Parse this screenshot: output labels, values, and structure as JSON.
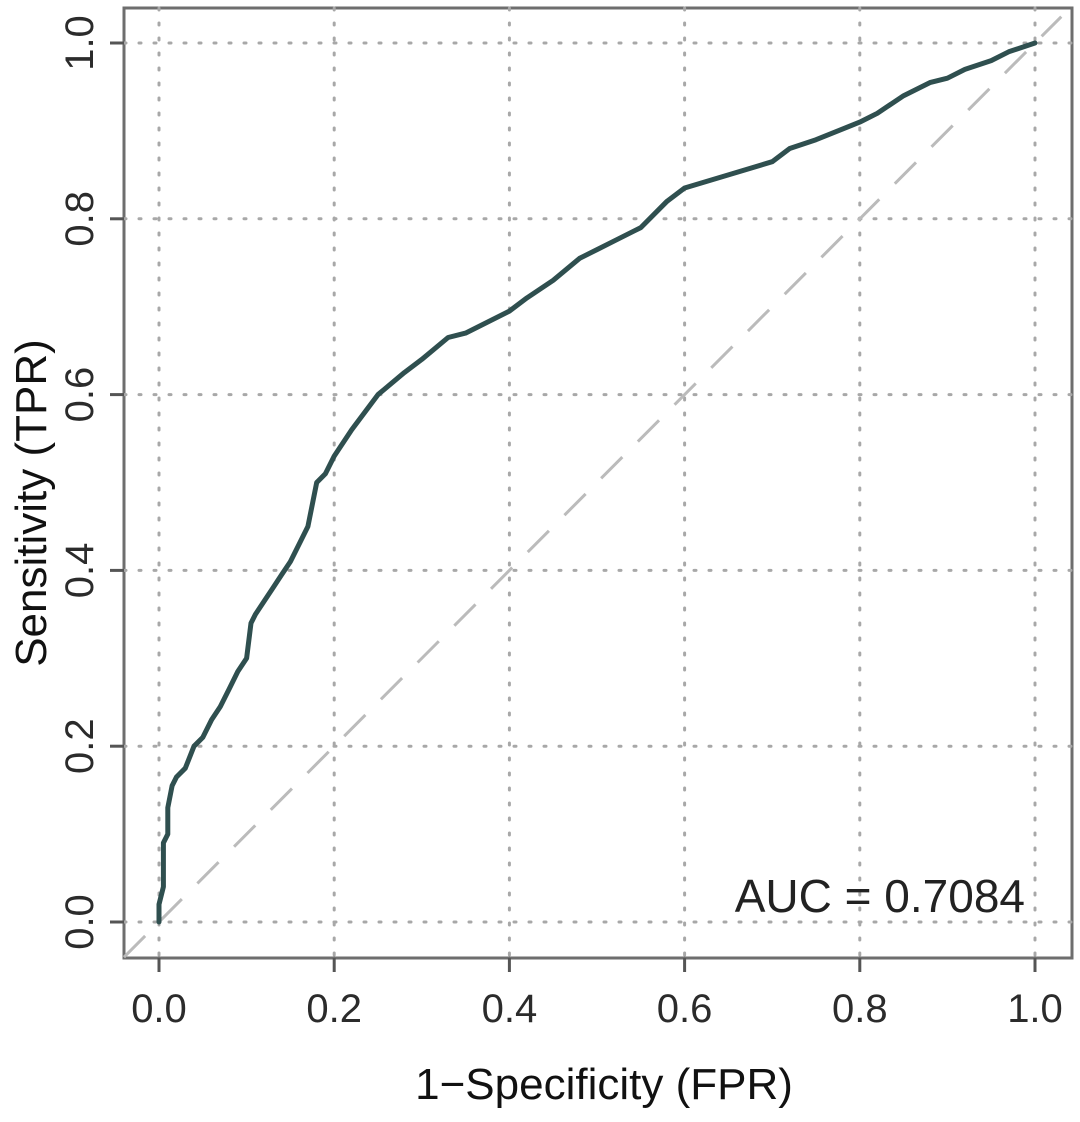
{
  "chart_data": {
    "type": "line",
    "xlabel": "1−Specificity (FPR)",
    "ylabel": "Sensitivity (TPR)",
    "xlim": [
      0,
      1
    ],
    "ylim": [
      0,
      1
    ],
    "x_ticks": [
      "0.0",
      "0.2",
      "0.4",
      "0.6",
      "0.8",
      "1.0"
    ],
    "y_ticks": [
      "0.0",
      "0.2",
      "0.4",
      "0.6",
      "0.8",
      "1.0"
    ],
    "grid": true,
    "annotation": "AUC = 0.7084",
    "series": [
      {
        "color": "#2f4f4f",
        "x": [
          0,
          0,
          0.005,
          0.005,
          0.01,
          0.01,
          0.015,
          0.02,
          0.03,
          0.04,
          0.05,
          0.06,
          0.07,
          0.08,
          0.09,
          0.1,
          0.105,
          0.11,
          0.12,
          0.13,
          0.14,
          0.15,
          0.16,
          0.17,
          0.18,
          0.19,
          0.2,
          0.22,
          0.25,
          0.28,
          0.3,
          0.33,
          0.35,
          0.4,
          0.42,
          0.45,
          0.48,
          0.5,
          0.52,
          0.55,
          0.58,
          0.6,
          0.65,
          0.7,
          0.72,
          0.75,
          0.8,
          0.82,
          0.85,
          0.88,
          0.9,
          0.92,
          0.95,
          0.97,
          1.0
        ],
        "y": [
          0,
          0.02,
          0.04,
          0.09,
          0.1,
          0.13,
          0.155,
          0.165,
          0.175,
          0.2,
          0.21,
          0.23,
          0.245,
          0.265,
          0.285,
          0.3,
          0.34,
          0.35,
          0.365,
          0.38,
          0.395,
          0.41,
          0.43,
          0.45,
          0.5,
          0.51,
          0.53,
          0.56,
          0.6,
          0.625,
          0.64,
          0.665,
          0.67,
          0.695,
          0.71,
          0.73,
          0.755,
          0.765,
          0.775,
          0.79,
          0.82,
          0.835,
          0.85,
          0.865,
          0.88,
          0.89,
          0.91,
          0.92,
          0.94,
          0.955,
          0.96,
          0.97,
          0.98,
          0.99,
          1.0
        ]
      }
    ],
    "reference_line": {
      "x": [
        0,
        1
      ],
      "y": [
        0,
        1
      ],
      "color": "#bbbbbb",
      "dashed": true
    }
  }
}
